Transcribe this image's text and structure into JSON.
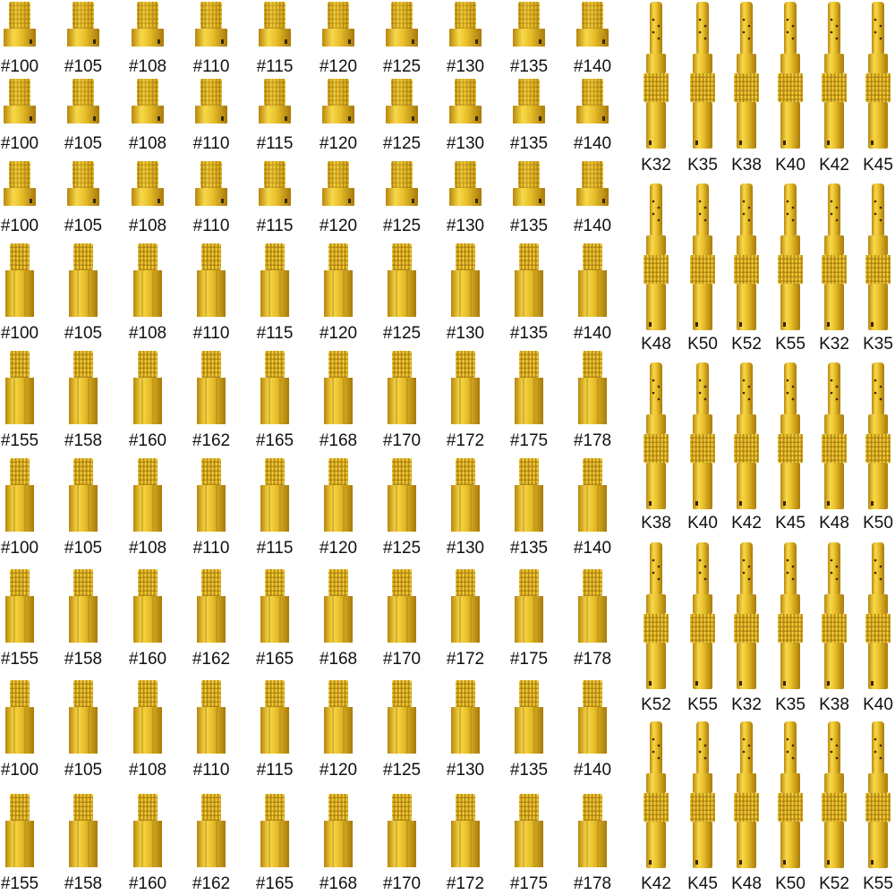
{
  "colors": {
    "gold_light": "#f7d84a",
    "gold_mid": "#dcae1d",
    "gold_dark": "#a87a0a",
    "label": "#111111"
  },
  "main_jet_rows": [
    {
      "style": "round-head",
      "labels": [
        "#100",
        "#105",
        "#108",
        "#110",
        "#115",
        "#120",
        "#125",
        "#130",
        "#135",
        "#140"
      ]
    },
    {
      "style": "round-head",
      "labels": [
        "#100",
        "#105",
        "#108",
        "#110",
        "#115",
        "#120",
        "#125",
        "#130",
        "#135",
        "#140"
      ]
    },
    {
      "style": "round-head",
      "labels": [
        "#100",
        "#105",
        "#108",
        "#110",
        "#115",
        "#120",
        "#125",
        "#130",
        "#135",
        "#140"
      ]
    },
    {
      "style": "hex",
      "labels": [
        "#100",
        "#105",
        "#108",
        "#110",
        "#115",
        "#120",
        "#125",
        "#130",
        "#135",
        "#140"
      ]
    },
    {
      "style": "hex",
      "labels": [
        "#155",
        "#158",
        "#160",
        "#162",
        "#165",
        "#168",
        "#170",
        "#172",
        "#175",
        "#178"
      ]
    },
    {
      "style": "hex",
      "labels": [
        "#100",
        "#105",
        "#108",
        "#110",
        "#115",
        "#120",
        "#125",
        "#130",
        "#135",
        "#140"
      ]
    },
    {
      "style": "hex",
      "labels": [
        "#155",
        "#158",
        "#160",
        "#162",
        "#165",
        "#168",
        "#170",
        "#172",
        "#175",
        "#178"
      ]
    },
    {
      "style": "hex",
      "labels": [
        "#100",
        "#105",
        "#108",
        "#110",
        "#115",
        "#120",
        "#125",
        "#130",
        "#135",
        "#140"
      ]
    },
    {
      "style": "hex",
      "labels": [
        "#155",
        "#158",
        "#160",
        "#162",
        "#165",
        "#168",
        "#170",
        "#172",
        "#175",
        "#178"
      ]
    }
  ],
  "pilot_jet_rows": [
    {
      "labels": [
        "K32",
        "K35",
        "K38",
        "K40",
        "K42",
        "K45"
      ]
    },
    {
      "labels": [
        "K48",
        "K50",
        "K52",
        "K55",
        "K32",
        "K35"
      ]
    },
    {
      "labels": [
        "K38",
        "K40",
        "K42",
        "K45",
        "K48",
        "K50"
      ]
    },
    {
      "labels": [
        "K52",
        "K55",
        "K32",
        "K35",
        "K38",
        "K40"
      ]
    },
    {
      "labels": [
        "K42",
        "K45",
        "K48",
        "K50",
        "K52",
        "K55"
      ]
    }
  ]
}
